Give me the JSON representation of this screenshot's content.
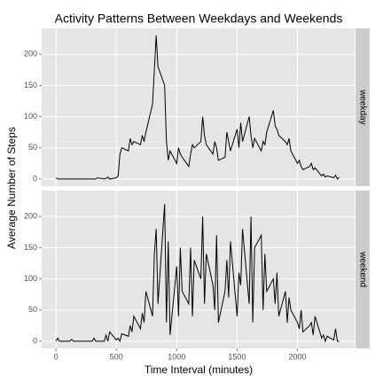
{
  "chart_data": {
    "type": "line",
    "title": "Activity Patterns Between Weekdays and Weekends",
    "xlabel": "Time Interval (minutes)",
    "ylabel": "Average Number of Steps",
    "xlim": [
      -118,
      2473
    ],
    "xticks": [
      0,
      500,
      1000,
      1500,
      2000
    ],
    "ylim": [
      -11.5,
      241.5
    ],
    "yticks": [
      0,
      50,
      100,
      150,
      200
    ],
    "grid": true,
    "x": [
      0,
      15,
      30,
      45,
      100,
      115,
      130,
      145,
      200,
      215,
      230,
      245,
      300,
      315,
      330,
      345,
      400,
      415,
      430,
      445,
      500,
      515,
      530,
      545,
      600,
      615,
      630,
      645,
      700,
      715,
      730,
      745,
      800,
      815,
      830,
      845,
      900,
      915,
      930,
      945,
      1000,
      1015,
      1030,
      1045,
      1100,
      1115,
      1130,
      1145,
      1200,
      1215,
      1230,
      1245,
      1300,
      1315,
      1330,
      1345,
      1400,
      1415,
      1430,
      1445,
      1500,
      1515,
      1530,
      1545,
      1600,
      1615,
      1630,
      1645,
      1700,
      1715,
      1730,
      1745,
      1800,
      1815,
      1830,
      1845,
      1900,
      1915,
      1930,
      1945,
      2000,
      2015,
      2030,
      2045,
      2100,
      2115,
      2130,
      2145,
      2200,
      2215,
      2230,
      2245,
      2300,
      2315,
      2330,
      2345
    ],
    "series": [
      {
        "name": "weekday",
        "color": "#000000",
        "values": [
          2,
          0,
          0,
          0,
          0,
          0,
          0,
          0,
          0,
          0,
          0,
          0,
          0,
          0,
          0,
          2,
          0,
          1,
          3,
          0,
          2,
          5,
          40,
          50,
          45,
          65,
          55,
          60,
          55,
          70,
          60,
          75,
          120,
          175,
          230,
          180,
          150,
          60,
          30,
          45,
          25,
          50,
          40,
          35,
          20,
          40,
          55,
          50,
          60,
          100,
          70,
          55,
          40,
          60,
          50,
          30,
          35,
          75,
          60,
          45,
          80,
          50,
          90,
          60,
          100,
          70,
          50,
          65,
          45,
          60,
          55,
          75,
          110,
          85,
          80,
          70,
          60,
          55,
          65,
          45,
          25,
          30,
          20,
          15,
          20,
          25,
          15,
          18,
          5,
          8,
          3,
          5,
          2,
          6,
          0,
          3
        ]
      },
      {
        "name": "weekend",
        "color": "#000000",
        "values": [
          0,
          5,
          0,
          0,
          0,
          0,
          3,
          0,
          0,
          0,
          0,
          0,
          0,
          5,
          0,
          0,
          0,
          10,
          0,
          15,
          2,
          5,
          0,
          12,
          8,
          25,
          15,
          40,
          20,
          45,
          30,
          80,
          40,
          140,
          180,
          60,
          220,
          30,
          160,
          10,
          120,
          40,
          150,
          80,
          60,
          150,
          40,
          130,
          100,
          200,
          60,
          140,
          90,
          50,
          170,
          30,
          80,
          130,
          70,
          160,
          40,
          110,
          90,
          180,
          60,
          200,
          30,
          150,
          170,
          50,
          140,
          80,
          100,
          60,
          110,
          40,
          80,
          30,
          70,
          50,
          30,
          20,
          50,
          15,
          25,
          30,
          10,
          40,
          5,
          10,
          0,
          8,
          2,
          20,
          0,
          0
        ]
      }
    ]
  }
}
